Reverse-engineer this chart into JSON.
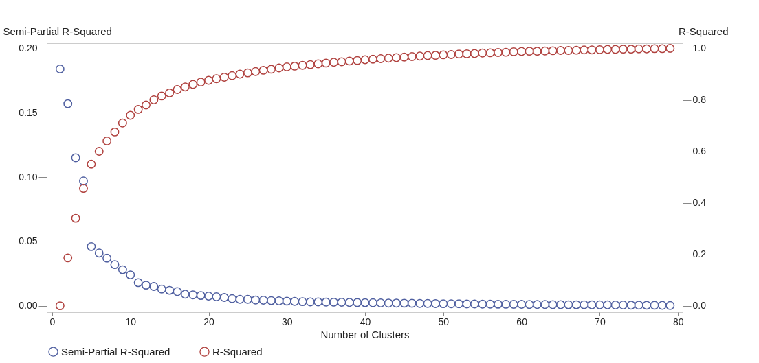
{
  "chart_data": {
    "type": "scatter",
    "xlabel": "Number of Clusters",
    "ylabel": "Semi-Partial R-Squared",
    "y2label": "R-Squared",
    "x": [
      1,
      2,
      3,
      4,
      5,
      6,
      7,
      8,
      9,
      10,
      11,
      12,
      13,
      14,
      15,
      16,
      17,
      18,
      19,
      20,
      21,
      22,
      23,
      24,
      25,
      26,
      27,
      28,
      29,
      30,
      31,
      32,
      33,
      34,
      35,
      36,
      37,
      38,
      39,
      40,
      41,
      42,
      43,
      44,
      45,
      46,
      47,
      48,
      49,
      50,
      51,
      52,
      53,
      54,
      55,
      56,
      57,
      58,
      59,
      60,
      61,
      62,
      63,
      64,
      65,
      66,
      67,
      68,
      69,
      70,
      71,
      72,
      73,
      74,
      75,
      76,
      77,
      78,
      79
    ],
    "xlim": [
      -0.7,
      80.6
    ],
    "xticks": [
      0,
      10,
      20,
      30,
      40,
      50,
      60,
      70,
      80
    ],
    "ylim": [
      -0.005,
      0.204
    ],
    "yticks": [
      {
        "value": 0,
        "label": "0.00"
      },
      {
        "value": 0.05,
        "label": "0.05"
      },
      {
        "value": 0.1,
        "label": "0.10"
      },
      {
        "value": 0.15,
        "label": "0.15"
      },
      {
        "value": 0.2,
        "label": "0.20"
      }
    ],
    "y2lim": [
      -0.025,
      1.02
    ],
    "y2ticks": [
      {
        "value": 0,
        "label": "0.0"
      },
      {
        "value": 0.2,
        "label": "0.2"
      },
      {
        "value": 0.4,
        "label": "0.4"
      },
      {
        "value": 0.6,
        "label": "0.6"
      },
      {
        "value": 0.8,
        "label": "0.8"
      },
      {
        "value": 1,
        "label": "1.0"
      }
    ],
    "series": [
      {
        "name": "Semi-Partial R-Squared",
        "color": "#4f5fa0",
        "axis": "y",
        "values": [
          0.184,
          0.157,
          0.115,
          0.097,
          0.046,
          0.041,
          0.037,
          0.032,
          0.028,
          0.024,
          0.018,
          0.016,
          0.015,
          0.013,
          0.012,
          0.011,
          0.009,
          0.0085,
          0.008,
          0.0075,
          0.007,
          0.0065,
          0.0055,
          0.005,
          0.005,
          0.0045,
          0.0043,
          0.004,
          0.0038,
          0.0036,
          0.0034,
          0.0032,
          0.003,
          0.003,
          0.0029,
          0.0028,
          0.0027,
          0.0026,
          0.0025,
          0.0024,
          0.0023,
          0.0022,
          0.0021,
          0.0021,
          0.002,
          0.0019,
          0.0018,
          0.0018,
          0.0017,
          0.0016,
          0.0015,
          0.0015,
          0.0014,
          0.0014,
          0.0013,
          0.0013,
          0.0012,
          0.0012,
          0.0011,
          0.0011,
          0.001,
          0.001,
          0.001,
          0.0009,
          0.0009,
          0.0008,
          0.0008,
          0.0008,
          0.0007,
          0.0007,
          0.0007,
          0.0006,
          0.0006,
          0.0005,
          0.0005,
          0.0004,
          0.0004,
          0.0003,
          0.0002
        ]
      },
      {
        "name": "R-Squared",
        "color": "#b0413e",
        "axis": "y2",
        "values": [
          0.0,
          0.186,
          0.34,
          0.456,
          0.55,
          0.6,
          0.64,
          0.675,
          0.71,
          0.74,
          0.763,
          0.78,
          0.8,
          0.815,
          0.827,
          0.84,
          0.85,
          0.86,
          0.869,
          0.876,
          0.882,
          0.888,
          0.894,
          0.9,
          0.905,
          0.91,
          0.915,
          0.919,
          0.924,
          0.928,
          0.931,
          0.934,
          0.937,
          0.94,
          0.943,
          0.946,
          0.948,
          0.951,
          0.953,
          0.956,
          0.958,
          0.96,
          0.962,
          0.964,
          0.966,
          0.968,
          0.97,
          0.972,
          0.973,
          0.975,
          0.976,
          0.978,
          0.979,
          0.98,
          0.982,
          0.983,
          0.984,
          0.985,
          0.987,
          0.988,
          0.989,
          0.989,
          0.99,
          0.991,
          0.992,
          0.992,
          0.993,
          0.994,
          0.994,
          0.995,
          0.996,
          0.996,
          0.997,
          0.997,
          0.998,
          0.998,
          0.999,
          0.999,
          1.0
        ]
      }
    ],
    "legend": "bottom",
    "marker": "circle",
    "grid": false
  }
}
